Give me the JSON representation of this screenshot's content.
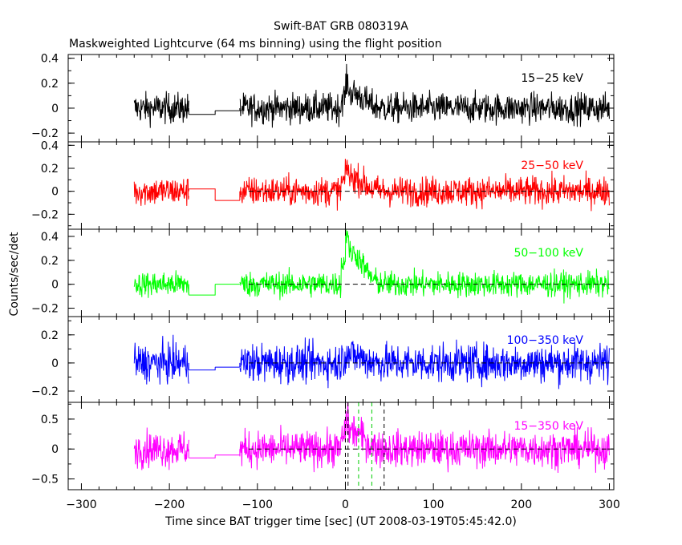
{
  "chart_data": {
    "type": "line",
    "title": "Swift-BAT GRB 080319A",
    "subtitle": "Maskweighted Lightcurve (64 ms binning) using the flight position",
    "xlabel": "Time since BAT trigger time [sec] (UT 2008-03-19T05:45:42.0)",
    "ylabel": "Counts/sec/det",
    "xlim": [
      -315,
      305
    ],
    "xticks": [
      -300,
      -200,
      -100,
      0,
      100,
      200,
      300
    ],
    "xtick_labels": [
      "−300",
      "−200",
      "−100",
      "0",
      "100",
      "200",
      "300"
    ],
    "data_segments": [
      [
        -240,
        -178
      ],
      [
        -120,
        300
      ]
    ],
    "gap_steps": [
      [
        -178,
        -148
      ],
      [
        -148,
        -120
      ]
    ],
    "panels": [
      {
        "name": "15-25 keV",
        "label": "15−25 keV",
        "color": "#000000",
        "ylim": [
          -0.27,
          0.43
        ],
        "yticks": [
          -0.2,
          0,
          0.2,
          0.4
        ],
        "ytick_labels": [
          "−0.2",
          "0",
          "0.2",
          "0.4"
        ],
        "noise_amplitude": 0.085,
        "gap_levels": [
          -0.05,
          -0.02
        ],
        "burst_peak": 0.12,
        "zero_line": false
      },
      {
        "name": "25-50 keV",
        "label": "25−50 keV",
        "color": "#ff0000",
        "ylim": [
          -0.33,
          0.43
        ],
        "yticks": [
          -0.2,
          0,
          0.2,
          0.4
        ],
        "ytick_labels": [
          "−0.2",
          "0",
          "0.2",
          "0.4"
        ],
        "noise_amplitude": 0.09,
        "gap_levels": [
          0.02,
          -0.08
        ],
        "burst_peak": 0.12,
        "zero_line": true
      },
      {
        "name": "50-100 keV",
        "label": "50−100 keV",
        "color": "#00ff00",
        "ylim": [
          -0.27,
          0.46
        ],
        "yticks": [
          -0.2,
          0,
          0.2,
          0.4
        ],
        "ytick_labels": [
          "−0.2",
          "0",
          "0.2",
          "0.4"
        ],
        "noise_amplitude": 0.075,
        "gap_levels": [
          -0.09,
          0.0
        ],
        "burst_peak": 0.26,
        "zero_line": true
      },
      {
        "name": "100-350 keV",
        "label": "100−350 keV",
        "color": "#0000ff",
        "ylim": [
          -0.28,
          0.33
        ],
        "yticks": [
          -0.2,
          0,
          0.2
        ],
        "ytick_labels": [
          "−0.2",
          "0",
          "0.2"
        ],
        "noise_amplitude": 0.095,
        "gap_levels": [
          -0.05,
          -0.03
        ],
        "burst_peak": 0.05,
        "zero_line": true
      },
      {
        "name": "15-350 keV",
        "label": "15−350 keV",
        "color": "#ff00ff",
        "ylim": [
          -0.68,
          0.78
        ],
        "yticks": [
          -0.5,
          0,
          0.5
        ],
        "ytick_labels": [
          "−0.5",
          "0",
          "0.5"
        ],
        "noise_amplitude": 0.21,
        "gap_levels": [
          -0.15,
          -0.1
        ],
        "burst_peak": 0.3,
        "zero_line": true,
        "vlines": [
          {
            "x": 0,
            "color": "#000000"
          },
          {
            "x": 3,
            "color": "#000000"
          },
          {
            "x": 44,
            "color": "#000000"
          },
          {
            "x": 15,
            "color": "#00cc00"
          },
          {
            "x": 30,
            "color": "#00cc00"
          }
        ]
      }
    ]
  }
}
